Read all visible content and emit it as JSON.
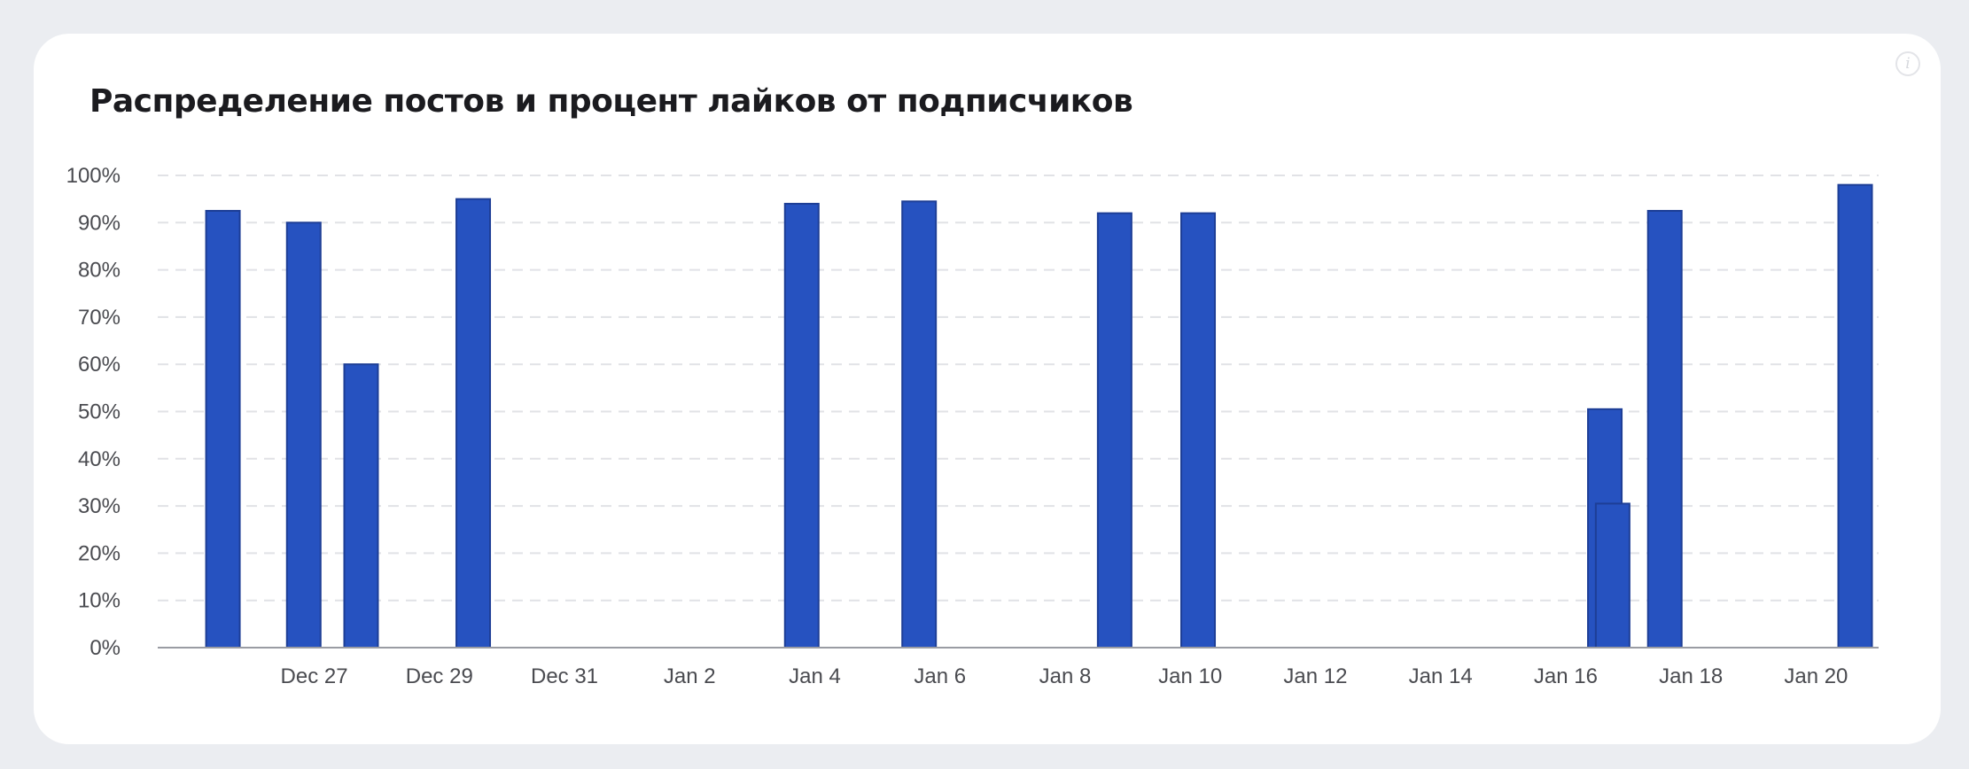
{
  "card": {
    "title": "Распределение постов и процент лайков от подписчиков",
    "info_icon": "info-icon"
  },
  "chart_data": {
    "type": "bar",
    "title": "Распределение постов и процент лайков от подписчиков",
    "xlabel": "",
    "ylabel": "",
    "ylim": [
      0,
      100
    ],
    "grid": true,
    "y_ticks": [
      "0%",
      "10%",
      "20%",
      "30%",
      "40%",
      "50%",
      "60%",
      "70%",
      "80%",
      "90%",
      "100%"
    ],
    "x_range": [
      "2023-12-24T12:00",
      "2024-01-21T00:00"
    ],
    "x_ticks": [
      {
        "date": "2023-12-27",
        "label": "Dec 27"
      },
      {
        "date": "2023-12-29",
        "label": "Dec 29"
      },
      {
        "date": "2023-12-31",
        "label": "Dec 31"
      },
      {
        "date": "2024-01-02",
        "label": "Jan 2"
      },
      {
        "date": "2024-01-04",
        "label": "Jan 4"
      },
      {
        "date": "2024-01-06",
        "label": "Jan 6"
      },
      {
        "date": "2024-01-08",
        "label": "Jan 8"
      },
      {
        "date": "2024-01-10",
        "label": "Jan 10"
      },
      {
        "date": "2024-01-12",
        "label": "Jan 12"
      },
      {
        "date": "2024-01-14",
        "label": "Jan 14"
      },
      {
        "date": "2024-01-16",
        "label": "Jan 16"
      },
      {
        "date": "2024-01-18",
        "label": "Jan 18"
      },
      {
        "date": "2024-01-20",
        "label": "Jan 20"
      }
    ],
    "bars": [
      {
        "x": "2023-12-25T13:00",
        "value": 92.5
      },
      {
        "x": "2023-12-26T20:00",
        "value": 90
      },
      {
        "x": "2023-12-27T18:00",
        "value": 60
      },
      {
        "x": "2023-12-29T13:00",
        "value": 95
      },
      {
        "x": "2024-01-03T19:00",
        "value": 94
      },
      {
        "x": "2024-01-05T16:00",
        "value": 94.5
      },
      {
        "x": "2024-01-08T19:00",
        "value": 92
      },
      {
        "x": "2024-01-10T03:00",
        "value": 92
      },
      {
        "x": "2024-01-16T15:00",
        "value": 50.5
      },
      {
        "x": "2024-01-16T18:00",
        "value": 30.5
      },
      {
        "x": "2024-01-17T14:00",
        "value": 92.5
      },
      {
        "x": "2024-01-20T15:00",
        "value": 98
      }
    ],
    "colors": {
      "bar": "#2652c0",
      "bar_edge": "#1d3e96",
      "grid": "#e1e2e6",
      "axis": "#9a9ca3"
    }
  }
}
